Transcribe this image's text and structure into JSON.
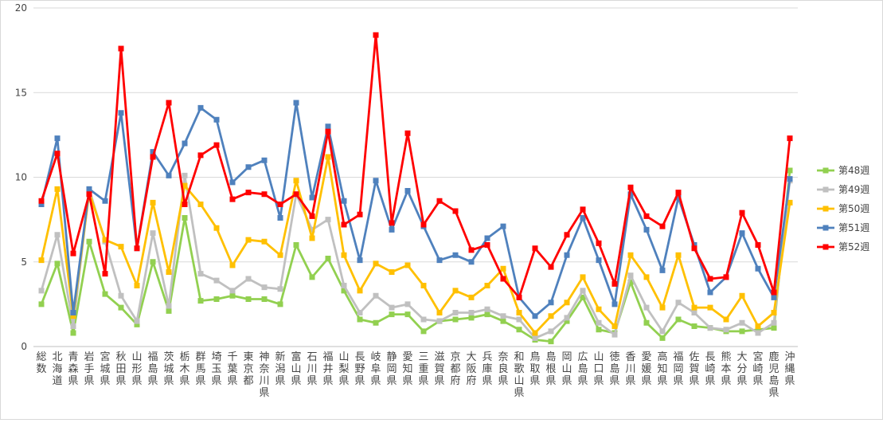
{
  "chart_data": {
    "type": "line",
    "ylim": [
      0,
      20
    ],
    "yticks": [
      0,
      5,
      10,
      15,
      20
    ],
    "grid": true,
    "legend_position": "right",
    "categories": [
      "総数",
      "北海道",
      "青森県",
      "岩手県",
      "宮城県",
      "秋田県",
      "山形県",
      "福島県",
      "茨城県",
      "栃木県",
      "群馬県",
      "埼玉県",
      "千葉県",
      "東京都",
      "神奈川県",
      "新潟県",
      "富山県",
      "石川県",
      "福井県",
      "山梨県",
      "長野県",
      "岐阜県",
      "静岡県",
      "愛知県",
      "三重県",
      "滋賀県",
      "京都府",
      "大阪府",
      "兵庫県",
      "奈良県",
      "和歌山県",
      "鳥取県",
      "島根県",
      "岡山県",
      "広島県",
      "山口県",
      "徳島県",
      "香川県",
      "愛媛県",
      "高知県",
      "福岡県",
      "佐賀県",
      "長崎県",
      "熊本県",
      "大分県",
      "宮崎県",
      "鹿児島県",
      "沖縄県"
    ],
    "series": [
      {
        "name": "第48週",
        "color": "#92d050",
        "values": [
          2.5,
          4.9,
          0.8,
          6.2,
          3.1,
          2.3,
          1.3,
          5.0,
          2.1,
          7.6,
          2.7,
          2.8,
          3.0,
          2.8,
          2.8,
          2.5,
          6.0,
          4.1,
          5.2,
          3.3,
          1.6,
          1.4,
          1.9,
          1.9,
          0.9,
          1.5,
          1.6,
          1.7,
          1.9,
          1.5,
          1.0,
          0.4,
          0.3,
          1.5,
          2.9,
          1.0,
          0.8,
          3.8,
          1.4,
          0.5,
          1.6,
          1.2,
          1.1,
          0.9,
          0.9,
          1.0,
          1.1,
          10.4
        ]
      },
      {
        "name": "第49週",
        "color": "#c0c0c0",
        "values": [
          3.3,
          6.6,
          1.2,
          9.3,
          6.2,
          3.0,
          1.5,
          6.7,
          2.4,
          10.1,
          4.3,
          3.9,
          3.3,
          4.0,
          3.5,
          3.4,
          9.0,
          6.9,
          7.5,
          3.6,
          2.0,
          3.0,
          2.3,
          2.5,
          1.6,
          1.5,
          2.0,
          2.0,
          2.2,
          1.8,
          1.6,
          0.5,
          0.9,
          1.7,
          3.3,
          1.4,
          0.7,
          4.2,
          2.3,
          0.9,
          2.6,
          2.0,
          1.1,
          1.0,
          1.4,
          0.8,
          1.4,
          9.8
        ]
      },
      {
        "name": "第50週",
        "color": "#ffc000",
        "values": [
          5.1,
          9.3,
          1.8,
          9.1,
          6.3,
          5.9,
          3.6,
          8.5,
          4.4,
          9.5,
          8.4,
          7.0,
          4.8,
          6.3,
          6.2,
          5.4,
          9.8,
          6.4,
          11.2,
          5.4,
          3.3,
          4.9,
          4.4,
          4.8,
          3.6,
          2.0,
          3.3,
          2.9,
          3.6,
          4.6,
          2.0,
          0.8,
          1.8,
          2.6,
          4.1,
          2.2,
          1.2,
          5.4,
          4.1,
          2.3,
          5.4,
          2.3,
          2.3,
          1.6,
          3.0,
          1.2,
          2.0,
          8.5
        ]
      },
      {
        "name": "第51週",
        "color": "#4f81bd",
        "values": [
          8.4,
          12.3,
          2.0,
          9.3,
          8.6,
          13.8,
          5.8,
          11.5,
          10.1,
          12.0,
          14.1,
          13.4,
          9.7,
          10.6,
          11.0,
          7.6,
          14.4,
          8.8,
          13.0,
          8.6,
          5.1,
          9.8,
          6.9,
          9.2,
          7.1,
          5.1,
          5.4,
          5.0,
          6.4,
          7.1,
          2.9,
          1.8,
          2.6,
          5.4,
          7.6,
          5.1,
          2.5,
          9.0,
          6.9,
          4.5,
          8.8,
          6.0,
          3.2,
          4.1,
          6.7,
          4.6,
          2.9,
          9.9
        ]
      },
      {
        "name": "第52週",
        "color": "#ff0000",
        "values": [
          8.6,
          11.4,
          5.5,
          9.0,
          4.3,
          17.6,
          5.8,
          11.2,
          14.4,
          8.4,
          11.3,
          11.9,
          8.7,
          9.1,
          9.0,
          8.4,
          9.0,
          7.7,
          12.7,
          7.2,
          7.8,
          18.4,
          7.3,
          12.6,
          7.2,
          8.6,
          8.0,
          5.7,
          6.0,
          4.0,
          2.9,
          5.8,
          4.7,
          6.6,
          8.1,
          6.1,
          3.7,
          9.4,
          7.7,
          7.1,
          9.1,
          5.8,
          4.0,
          4.1,
          7.9,
          6.0,
          3.2,
          12.3
        ]
      }
    ]
  }
}
